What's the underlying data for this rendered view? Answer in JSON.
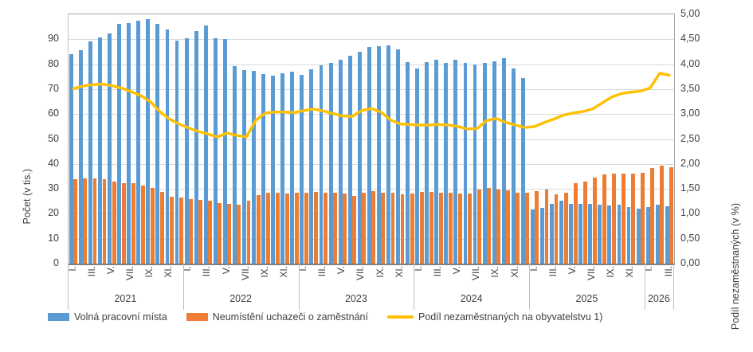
{
  "axes": {
    "left_title": "Počet (v tis.)",
    "right_title": "Podíl nezaměstnaných (v %)",
    "left_tick_labels": [
      "0",
      "10",
      "20",
      "30",
      "40",
      "50",
      "60",
      "70",
      "80",
      "90"
    ],
    "right_tick_labels": [
      "0,00",
      "0,50",
      "1,00",
      "1,50",
      "2,00",
      "2,50",
      "3,00",
      "3,50",
      "4,00",
      "4,50",
      "5,00"
    ]
  },
  "colors": {
    "bar_blue": "#5B9BD5",
    "bar_orange": "#ED7D31",
    "line_yellow": "#FFC000",
    "gridline": "#D9D9D9"
  },
  "legend": [
    {
      "label": "Volná pracovní místa",
      "color": "#5B9BD5",
      "type": "bar"
    },
    {
      "label": "Neumístění uchazeči o zaměstnání",
      "color": "#ED7D31",
      "type": "bar"
    },
    {
      "label": "Podíl nezaměstnaných na obyvatelstvu 1)",
      "color": "#FFC000",
      "type": "line"
    }
  ],
  "chart_data": {
    "type": "bar+line",
    "left_axis_range": [
      0,
      100
    ],
    "right_axis_range": [
      0,
      5
    ],
    "grid": true,
    "years": [
      {
        "year": "2021",
        "months": 12
      },
      {
        "year": "2022",
        "months": 12
      },
      {
        "year": "2023",
        "months": 12
      },
      {
        "year": "2024",
        "months": 12
      },
      {
        "year": "2025",
        "months": 12
      },
      {
        "year": "2026",
        "months": 3
      }
    ],
    "month_tick_labels": [
      "I.",
      "III.",
      "V.",
      "VII.",
      "IX.",
      "XI."
    ],
    "series": [
      {
        "name": "Volná pracovní místa",
        "kind": "bar",
        "axis": "left",
        "unit": "tis.",
        "values": [
          84.0,
          85.5,
          89.3,
          90.8,
          92.3,
          96.2,
          96.5,
          97.4,
          98.0,
          96.3,
          94.0,
          89.5,
          90.5,
          93.2,
          95.5,
          90.5,
          90.2,
          79.3,
          77.7,
          77.4,
          75.9,
          75.4,
          76.4,
          77.0,
          75.6,
          78.1,
          79.6,
          80.6,
          81.7,
          83.4,
          84.9,
          87.0,
          87.3,
          87.6,
          85.9,
          80.9,
          78.3,
          80.9,
          81.7,
          80.6,
          81.7,
          80.4,
          79.9,
          80.6,
          81.2,
          82.6,
          78.4,
          74.6,
          21.7,
          22.5,
          24.0,
          25.4,
          24.0,
          24.1,
          24.0,
          23.5,
          23.3,
          23.8,
          22.8,
          22.0,
          22.8,
          23.8,
          23.1
        ]
      },
      {
        "name": "Neumístění uchazeči o zaměstnání",
        "kind": "bar",
        "axis": "left",
        "unit": "tis.",
        "values": [
          33.9,
          34.2,
          34.3,
          33.9,
          33.0,
          32.2,
          32.2,
          31.4,
          30.4,
          28.8,
          26.9,
          26.5,
          25.9,
          25.6,
          25.1,
          24.3,
          23.9,
          23.5,
          25.2,
          27.5,
          28.3,
          28.3,
          28.1,
          28.3,
          28.6,
          28.9,
          28.6,
          28.3,
          28.1,
          27.2,
          28.6,
          29.1,
          28.6,
          28.3,
          27.8,
          28.1,
          28.9,
          28.9,
          28.6,
          28.3,
          28.1,
          28.1,
          29.6,
          30.4,
          29.6,
          29.4,
          28.6,
          28.6,
          29.1,
          29.8,
          27.7,
          28.4,
          32.3,
          32.8,
          34.4,
          35.7,
          36.0,
          36.0,
          36.0,
          36.3,
          38.2,
          39.2,
          38.6
        ]
      },
      {
        "name": "Podíl nezaměstnaných na obyvatelstvu 1)",
        "kind": "line",
        "axis": "right",
        "unit": "%",
        "values": [
          3.51,
          3.56,
          3.59,
          3.6,
          3.57,
          3.52,
          3.45,
          3.37,
          3.25,
          3.05,
          2.9,
          2.8,
          2.72,
          2.65,
          2.6,
          2.54,
          2.62,
          2.57,
          2.54,
          2.88,
          3.02,
          3.04,
          3.04,
          3.03,
          3.07,
          3.1,
          3.06,
          3.01,
          2.96,
          2.95,
          3.07,
          3.11,
          3.04,
          2.88,
          2.8,
          2.79,
          2.78,
          2.78,
          2.79,
          2.78,
          2.75,
          2.7,
          2.71,
          2.87,
          2.91,
          2.83,
          2.78,
          2.73,
          2.75,
          2.83,
          2.9,
          2.98,
          3.02,
          3.05,
          3.1,
          3.22,
          3.34,
          3.41,
          3.44,
          3.46,
          3.52,
          3.82,
          3.78
        ]
      }
    ]
  }
}
